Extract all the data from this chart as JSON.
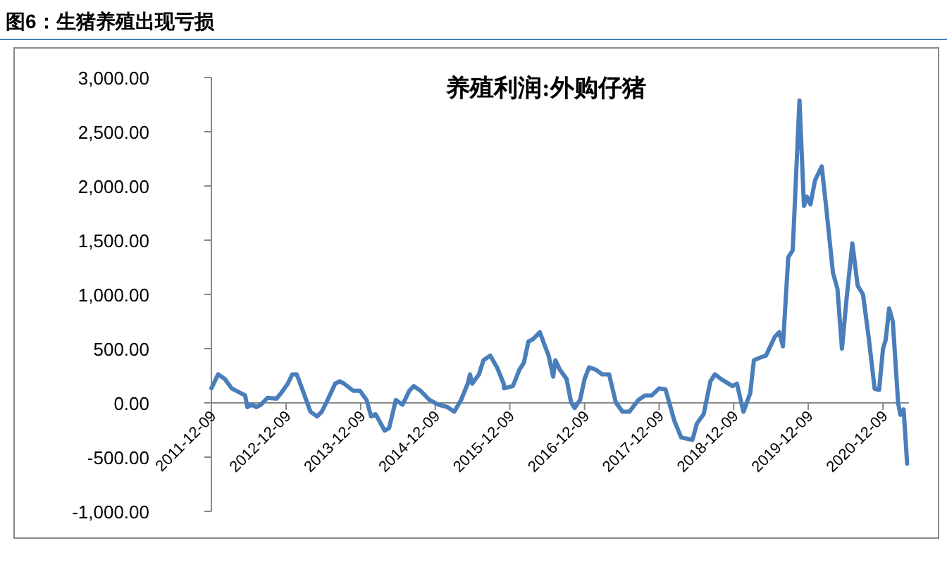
{
  "chart_data": {
    "type": "line",
    "title": "图6：生猪养殖出现亏损",
    "subtitle": "养殖利润:外购仔猪",
    "x": [
      "2011-12-09",
      "2012-01-11",
      "2012-02-13",
      "2012-03-17",
      "2012-05-22",
      "2012-06-02",
      "2012-06-24",
      "2012-07-16",
      "2012-08-07",
      "2012-09-09",
      "2012-10-23",
      "2012-11-14",
      "2012-12-17",
      "2013-01-08",
      "2013-01-30",
      "2013-03-05",
      "2013-04-07",
      "2013-05-10",
      "2013-06-01",
      "2013-06-23",
      "2013-08-06",
      "2013-08-28",
      "2013-09-19",
      "2013-11-02",
      "2013-12-05",
      "2014-01-07",
      "2014-01-29",
      "2014-02-20",
      "2014-04-05",
      "2014-04-27",
      "2014-05-30",
      "2014-07-02",
      "2014-08-04",
      "2014-08-26",
      "2014-09-28",
      "2014-11-11",
      "2014-12-25",
      "2015-02-07",
      "2015-03-12",
      "2015-04-14",
      "2015-05-17",
      "2015-05-28",
      "2015-06-08",
      "2015-07-11",
      "2015-08-02",
      "2015-09-04",
      "2015-10-07",
      "2015-11-09",
      "2015-11-11",
      "2015-12-24",
      "2016-01-25",
      "2016-02-16",
      "2016-03-09",
      "2016-03-31",
      "2016-05-04",
      "2016-05-25",
      "2016-06-16",
      "2016-07-08",
      "2016-07-19",
      "2016-08-10",
      "2016-09-12",
      "2016-10-04",
      "2016-10-21",
      "2016-11-17",
      "2016-12-09",
      "2016-12-31",
      "2017-02-02",
      "2017-03-05",
      "2017-04-08",
      "2017-05-11",
      "2017-06-13",
      "2017-07-16",
      "2017-08-29",
      "2017-10-01",
      "2017-11-03",
      "2017-12-09",
      "2018-01-09",
      "2018-02-22",
      "2018-03-27",
      "2018-05-21",
      "2018-06-12",
      "2018-07-15",
      "2018-08-17",
      "2018-09-08",
      "2018-10-08",
      "2018-12-03",
      "2018-12-25",
      "2019-01-15",
      "2019-01-26",
      "2019-02-28",
      "2019-03-18",
      "2019-04-13",
      "2019-05-16",
      "2019-06-28",
      "2019-07-20",
      "2019-08-07",
      "2019-09-02",
      "2019-09-24",
      "2019-10-27",
      "2019-11-18",
      "2019-12-03",
      "2019-12-20",
      "2020-01-11",
      "2020-02-13",
      "2020-03-06",
      "2020-04-08",
      "2020-04-30",
      "2020-05-22",
      "2020-06-13",
      "2020-07-12",
      "2020-08-07",
      "2020-09-02",
      "2020-09-30",
      "2020-10-29",
      "2020-11-20",
      "2020-12-09",
      "2020-12-22",
      "2021-01-08",
      "2021-01-26",
      "2021-02-21",
      "2021-03-04",
      "2021-03-20",
      "2021-04-06"
    ],
    "series": [
      {
        "color": "#4a7ebb",
        "values": [
          134,
          263,
          220,
          134,
          69,
          -39,
          -17,
          -39,
          -17,
          47,
          39,
          90,
          177,
          263,
          263,
          90,
          -82,
          -125,
          -82,
          0,
          177,
          199,
          177,
          112,
          112,
          26,
          -125,
          -104,
          -255,
          -233,
          26,
          -17,
          112,
          155,
          112,
          26,
          -17,
          -39,
          -82,
          26,
          177,
          263,
          177,
          263,
          393,
          436,
          328,
          177,
          134,
          155,
          306,
          371,
          565,
          587,
          652,
          544,
          436,
          242,
          393,
          306,
          220,
          4,
          -47,
          26,
          220,
          328,
          306,
          263,
          263,
          4,
          -82,
          -82,
          26,
          69,
          69,
          134,
          125,
          -168,
          -319,
          -341,
          -190,
          -104,
          199,
          263,
          220,
          155,
          177,
          4,
          -82,
          90,
          393,
          414,
          436,
          609,
          652,
          522,
          1342,
          1407,
          2788,
          1817,
          1900,
          1830,
          2050,
          2180,
          1800,
          1200,
          1050,
          500,
          950,
          1470,
          1080,
          1000,
          600,
          130,
          120,
          500,
          580,
          870,
          750,
          0,
          -110,
          -60,
          -560
        ]
      }
    ],
    "ylim": [
      -1000,
      3000
    ],
    "yticks": [
      {
        "value": -1000,
        "label": "-1,000.00"
      },
      {
        "value": -500,
        "label": "-500.00"
      },
      {
        "value": 0,
        "label": "0.00"
      },
      {
        "value": 500,
        "label": "500.00"
      },
      {
        "value": 1000,
        "label": "1,000.00"
      },
      {
        "value": 1500,
        "label": "1,500.00"
      },
      {
        "value": 2000,
        "label": "2,000.00"
      },
      {
        "value": 2500,
        "label": "2,500.00"
      },
      {
        "value": 3000,
        "label": "3,000.00"
      }
    ],
    "xlim": [
      "2011-12-09",
      "2021-04-15"
    ],
    "xticks": [
      "2011-12-09",
      "2012-12-09",
      "2013-12-09",
      "2014-12-09",
      "2015-12-09",
      "2016-12-09",
      "2017-12-09",
      "2018-12-09",
      "2019-12-09",
      "2020-12-09"
    ],
    "grid": false,
    "marker": "none",
    "line_style": "solid"
  }
}
